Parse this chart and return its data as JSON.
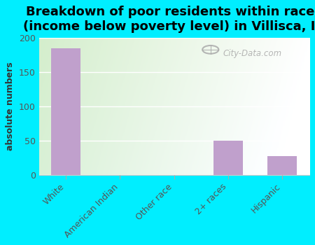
{
  "title": "Breakdown of poor residents within races\n(income below poverty level) in Villisca, IA",
  "categories": [
    "White",
    "American Indian",
    "Other race",
    "2+ races",
    "Hispanic"
  ],
  "values": [
    185,
    0,
    0,
    50,
    27
  ],
  "bar_color": "#c0a0cc",
  "ylim": [
    0,
    200
  ],
  "yticks": [
    0,
    50,
    100,
    150,
    200
  ],
  "ylabel": "absolute numbers",
  "bg_outer": "#00eeff",
  "bg_plot_left": "#d4eecc",
  "bg_plot_right": "#f5fff5",
  "watermark": "City-Data.com",
  "title_fontsize": 13,
  "label_fontsize": 9,
  "tick_fontsize": 9,
  "bar_width": 0.55
}
